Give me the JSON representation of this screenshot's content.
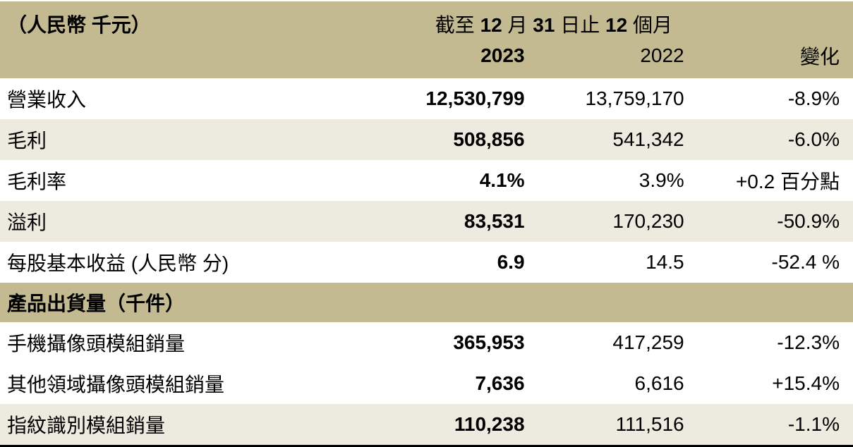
{
  "colors": {
    "header_bg": "#c3ba92",
    "stripe_bg": "#edeadf",
    "text": "#000000",
    "border": "#000000"
  },
  "header": {
    "unit_label": "（人民幣 千元）",
    "period": {
      "seg1": "截至",
      "num1": "12",
      "seg2": "月",
      "num2": "31",
      "seg3": "日止",
      "num3": "12",
      "seg4": "個月"
    },
    "col_2023": "2023",
    "col_2022": "2022",
    "col_change": "變化"
  },
  "table": {
    "rows": [
      {
        "label": "營業收入",
        "y2023": "12,530,799",
        "y2022": "13,759,170",
        "change": "-8.9%"
      },
      {
        "label": "毛利",
        "y2023": "508,856",
        "y2022": "541,342",
        "change": "-6.0%"
      },
      {
        "label": "毛利率",
        "y2023": "4.1%",
        "y2022": "3.9%",
        "change": "+0.2 百分點"
      },
      {
        "label": "溢利",
        "y2023": "83,531",
        "y2022": "170,230",
        "change": "-50.9%"
      },
      {
        "label": "每股基本收益 (人民幣 分)",
        "y2023": "6.9",
        "y2022": "14.5",
        "change": "-52.4 %"
      },
      {
        "label": "手機攝像頭模組銷量",
        "y2023": "365,953",
        "y2022": "417,259",
        "change": "-12.3%"
      },
      {
        "label": "其他領域攝像頭模組銷量",
        "y2023": "7,636",
        "y2022": "6,616",
        "change": "+15.4%"
      },
      {
        "label": "指紋識別模組銷量",
        "y2023": "110,238",
        "y2022": "111,516",
        "change": "-1.1%"
      }
    ],
    "section_header": "產品出貨量（千件）"
  }
}
